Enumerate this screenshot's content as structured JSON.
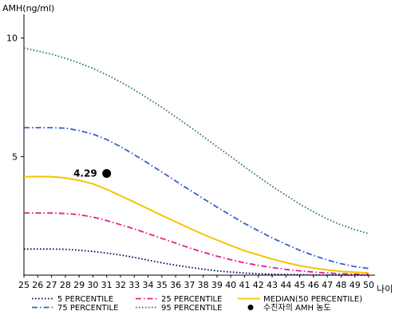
{
  "chart_data": {
    "type": "line",
    "ylabel": "AMH(ng/ml)",
    "xlabel": "나이",
    "xlim": [
      25,
      50
    ],
    "ylim": [
      0,
      11
    ],
    "x_ticks": [
      25,
      26,
      27,
      28,
      29,
      30,
      31,
      32,
      33,
      34,
      35,
      36,
      37,
      38,
      39,
      40,
      41,
      42,
      43,
      44,
      45,
      46,
      47,
      48,
      49,
      50
    ],
    "y_ticks": [
      5,
      10
    ],
    "x": [
      25,
      26,
      27,
      28,
      29,
      30,
      31,
      32,
      33,
      34,
      35,
      36,
      37,
      38,
      39,
      40,
      41,
      42,
      43,
      44,
      45,
      46,
      47,
      48,
      49,
      50
    ],
    "series": [
      {
        "name": "95 PERCENTILE",
        "color": "#2e7d4f",
        "dash": "dotted",
        "values": [
          9.58,
          9.45,
          9.32,
          9.15,
          8.95,
          8.72,
          8.45,
          8.15,
          7.82,
          7.45,
          7.08,
          6.68,
          6.27,
          5.85,
          5.42,
          5.0,
          4.57,
          4.15,
          3.75,
          3.37,
          3.0,
          2.67,
          2.37,
          2.12,
          1.92,
          1.75
        ]
      },
      {
        "name": "75 PERCENTILE",
        "color": "#3a5fcd",
        "dash": "dash-dot",
        "values": [
          6.22,
          6.22,
          6.22,
          6.2,
          6.1,
          5.95,
          5.72,
          5.42,
          5.08,
          4.72,
          4.35,
          3.97,
          3.6,
          3.23,
          2.87,
          2.52,
          2.18,
          1.87,
          1.57,
          1.3,
          1.05,
          0.83,
          0.64,
          0.48,
          0.36,
          0.28
        ]
      },
      {
        "name": "MEDIAN(50 PERCENTILE)",
        "color": "#f5c400",
        "dash": "solid",
        "values": [
          4.15,
          4.16,
          4.15,
          4.1,
          4.0,
          3.85,
          3.62,
          3.35,
          3.08,
          2.8,
          2.52,
          2.25,
          1.98,
          1.72,
          1.48,
          1.25,
          1.03,
          0.85,
          0.68,
          0.53,
          0.4,
          0.3,
          0.22,
          0.16,
          0.12,
          0.1
        ]
      },
      {
        "name": "25 PERCENTILE",
        "color": "#e0208c",
        "dash": "dash-dot",
        "values": [
          2.62,
          2.62,
          2.62,
          2.6,
          2.55,
          2.45,
          2.3,
          2.13,
          1.95,
          1.75,
          1.55,
          1.35,
          1.15,
          0.97,
          0.8,
          0.65,
          0.52,
          0.41,
          0.32,
          0.24,
          0.18,
          0.13,
          0.09,
          0.06,
          0.04,
          0.03
        ]
      },
      {
        "name": "5 PERCENTILE",
        "color": "#0a0a5a",
        "dash": "dotted",
        "values": [
          1.1,
          1.1,
          1.1,
          1.09,
          1.05,
          1.0,
          0.93,
          0.85,
          0.75,
          0.63,
          0.52,
          0.42,
          0.33,
          0.25,
          0.18,
          0.13,
          0.09,
          0.06,
          0.04,
          0.03,
          0.02,
          0.01,
          0.01,
          0.0,
          0.0,
          0.0
        ]
      }
    ],
    "points": [
      {
        "name": "수진자의 AMH 농도",
        "x": 31,
        "y": 4.29,
        "label": "4.29",
        "color": "#000000"
      }
    ],
    "legend": {
      "position": "bottom",
      "items": [
        {
          "label": "5 PERCENTILE",
          "color": "#0a0a5a",
          "style": "dotted"
        },
        {
          "label": "25 PERCENTILE",
          "color": "#e0208c",
          "style": "dash-dot"
        },
        {
          "label": "MEDIAN(50 PERCENTILE)",
          "color": "#f5c400",
          "style": "solid"
        },
        {
          "label": "75 PERCENTILE",
          "color": "#3a5fcd",
          "style": "dash-dot"
        },
        {
          "label": "95 PERCENTILE",
          "color": "#2e7d4f",
          "style": "dotted"
        },
        {
          "label": "수진자의 AMH 농도",
          "color": "#000000",
          "style": "marker"
        }
      ]
    },
    "grid": false
  }
}
